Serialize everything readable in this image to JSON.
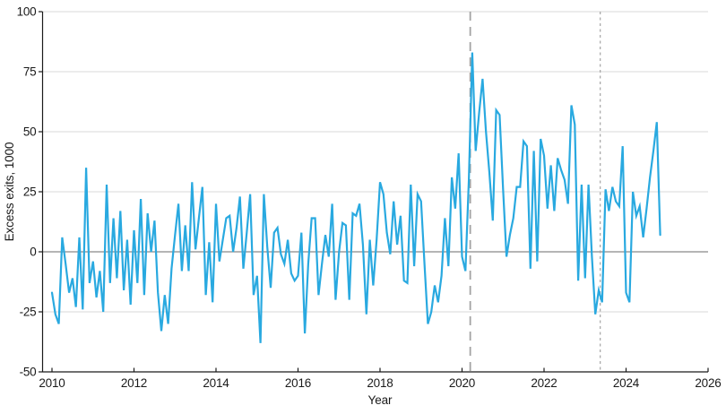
{
  "figure": {
    "background": "#ffffff",
    "y_axis_title": "Excess exits, 1000",
    "x_axis_title": "Year"
  },
  "colors": {
    "line": "#29a9e0",
    "grid": "#d9d9d9",
    "zero_line": "#6b6b6b",
    "axis": "#1a1a1a",
    "event_line": "#a3a3a3",
    "text": "#1a1a1a"
  },
  "chart_data": {
    "type": "line",
    "title": "",
    "xlabel": "Year",
    "ylabel": "Excess exits, 1000",
    "frequency": "monthly",
    "x_start_year": 2010,
    "x_start_month": 1,
    "xlim": [
      2010,
      2026
    ],
    "ylim": [
      -50,
      100
    ],
    "x_ticks": [
      2010,
      2012,
      2014,
      2016,
      2018,
      2020,
      2022,
      2024,
      2026
    ],
    "y_ticks": [
      100,
      75,
      50,
      25,
      0,
      -25,
      -50
    ],
    "grid": "horizontal-only",
    "legend": "none",
    "zero_line": true,
    "event_lines": [
      {
        "x": 2020.2,
        "dash": "long",
        "width": 1.8
      },
      {
        "x": 2023.37,
        "dash": "short",
        "width": 1.2
      }
    ],
    "series": [
      {
        "name": "Excess exits",
        "color": "#29a9e0",
        "values": [
          -17,
          -26,
          -30,
          6,
          -5,
          -17,
          -11,
          -23,
          6,
          -24,
          35,
          -13,
          -4,
          -19,
          -8,
          -25,
          28,
          -13,
          14,
          -11,
          17,
          -16,
          5,
          -22,
          9,
          -13,
          22,
          -18,
          16,
          0,
          13,
          -17,
          -33,
          -18,
          -30,
          -7,
          7,
          20,
          -8,
          11,
          -8,
          29,
          1,
          14,
          27,
          -18,
          4,
          -21,
          20,
          -4,
          5,
          14,
          15,
          0,
          10,
          23,
          -7,
          8,
          24,
          -18,
          -10,
          -38,
          24,
          2,
          -15,
          8,
          10,
          -1,
          -5,
          5,
          -9,
          -12,
          -10,
          8,
          -34,
          -5,
          14,
          14,
          -18,
          -5,
          7,
          -2,
          20,
          -20,
          0,
          12,
          11,
          -20,
          16,
          15,
          20,
          3,
          -26,
          5,
          -14,
          5,
          29,
          24,
          8,
          -1,
          21,
          3,
          15,
          -12,
          -13,
          28,
          -6,
          24,
          21,
          -5,
          -30,
          -25,
          -14,
          -21,
          -10,
          14,
          -6,
          31,
          18,
          41,
          -2,
          -8,
          30,
          83,
          42,
          58,
          72,
          50,
          33,
          13,
          59,
          57,
          26,
          -2,
          7,
          14,
          27,
          27,
          46,
          44,
          -7,
          42,
          -4,
          47,
          40,
          18,
          36,
          17,
          39,
          34,
          30,
          20,
          61,
          53,
          -12,
          28,
          -11,
          28,
          -2,
          -26,
          -16,
          -21,
          26,
          17,
          27,
          21,
          19,
          44,
          -17,
          -21,
          25,
          15,
          19,
          6,
          18,
          31,
          42,
          54,
          7
        ]
      }
    ]
  }
}
